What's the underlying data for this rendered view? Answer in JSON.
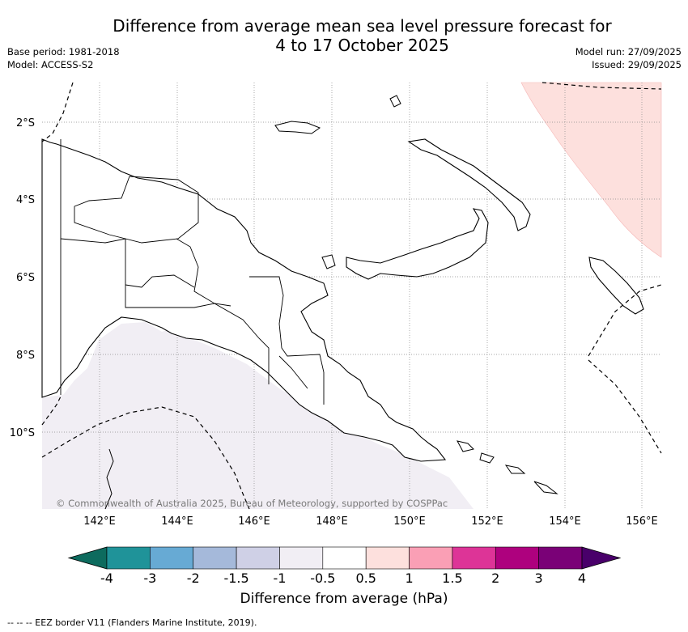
{
  "header": {
    "title_line1": "Difference from average mean sea level pressure forecast for",
    "title_line2": "4 to 17 October 2025",
    "base_period": "Base period: 1981-2018",
    "model": "Model: ACCESS-S2",
    "model_run": "Model run: 27/09/2025",
    "issued": "Issued: 29/09/2025"
  },
  "map": {
    "region": "Papua New Guinea",
    "lat_labels": [
      "2°S",
      "4°S",
      "6°S",
      "8°S",
      "10°S"
    ],
    "lon_labels": [
      "142°E",
      "144°E",
      "146°E",
      "148°E",
      "150°E",
      "152°E",
      "154°E",
      "156°E"
    ],
    "copyright": "© Commonwealth of Australia 2025, Bureau of Meteorology, supported by COSPPac",
    "shaded_areas": [
      {
        "category": "0.5 to 1",
        "location": "north-east of New Ireland"
      },
      {
        "category": "-1 to -0.5",
        "location": "southern Gulf of Papua / Torres Strait"
      }
    ],
    "land_color": "#ffffff",
    "coast_color": "#000000"
  },
  "colorbar": {
    "label": "Difference from average (hPa)",
    "ticks": [
      "-4",
      "-3",
      "-2",
      "-1.5",
      "-1",
      "-0.5",
      "0.5",
      "1",
      "1.5",
      "2",
      "3",
      "4"
    ],
    "colors": [
      "#0d6b5e",
      "#1f9399",
      "#67aad4",
      "#a5b9da",
      "#cfd0e6",
      "#f1eef4",
      "#ffffff",
      "#fde0dd",
      "#fa9fb5",
      "#dd3497",
      "#ae017e",
      "#7a0177",
      "#49006a"
    ]
  },
  "footnote": "-- -- -- EEZ border V11 (Flanders Marine Institute, 2019)."
}
